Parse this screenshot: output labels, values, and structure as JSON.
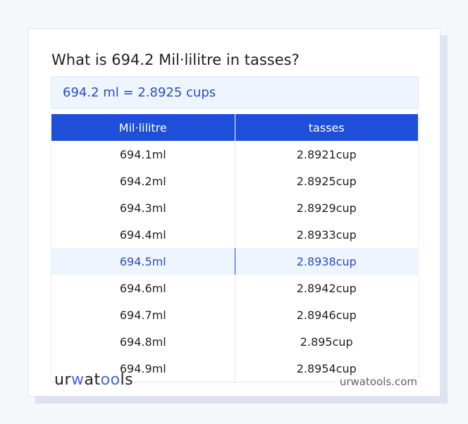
{
  "title": "What is 694.2 Mil·lilitre in tasses?",
  "result": "694.2 ml = 2.8925 cups",
  "table": {
    "headers": [
      "Mil·lilitre",
      "tasses"
    ],
    "rows": [
      [
        "694.1ml",
        "2.8921cup"
      ],
      [
        "694.2ml",
        "2.8925cup"
      ],
      [
        "694.3ml",
        "2.8929cup"
      ],
      [
        "694.4ml",
        "2.8933cup"
      ],
      [
        "694.5ml",
        "2.8938cup"
      ],
      [
        "694.6ml",
        "2.8942cup"
      ],
      [
        "694.7ml",
        "2.8946cup"
      ],
      [
        "694.8ml",
        "2.895cup"
      ],
      [
        "694.9ml",
        "2.8954cup"
      ]
    ],
    "highlighted_row": 4
  },
  "footer": {
    "logo": "urwatools",
    "domain": "urwatools.com"
  },
  "colors": {
    "accent": "#1d4fd8",
    "highlight_bg": "#eef5ff",
    "highlight_text": "#2a4fbf"
  }
}
